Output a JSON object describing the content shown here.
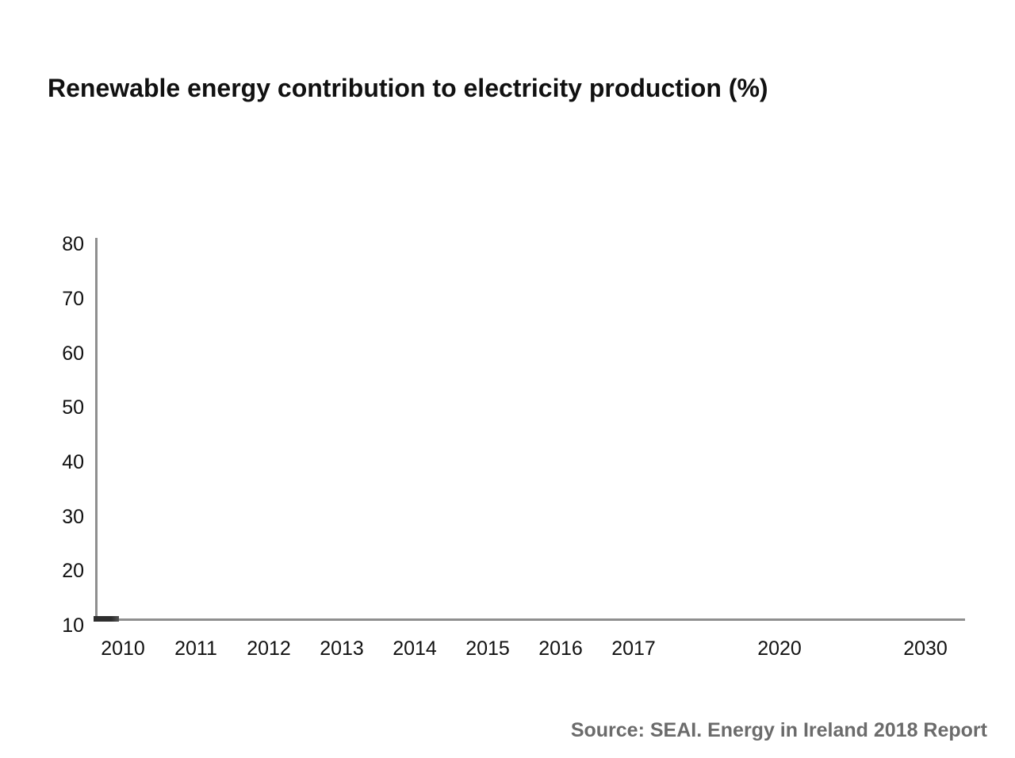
{
  "page": {
    "background": "#ffffff"
  },
  "title": "Renewable energy contribution to electricity production (%)",
  "source": "Source: SEAI. Energy in Ireland 2018 Report",
  "colors": {
    "title_text": "#111111",
    "tick_label_text": "#111111",
    "axis_line": "#8f8f8f",
    "line_start_segment": "#2e2e2e",
    "source_text": "#6b6b6b"
  },
  "chart_data": {
    "type": "line",
    "title": "Renewable energy contribution to electricity production (%)",
    "xlabel": "",
    "ylabel": "",
    "categories": [
      "2010",
      "2011",
      "2012",
      "2013",
      "2014",
      "2015",
      "2016",
      "2017",
      "2020",
      "2030"
    ],
    "category_slots": [
      0,
      1,
      2,
      3,
      4,
      5,
      6,
      7,
      9,
      11
    ],
    "yticks": [
      10,
      20,
      30,
      40,
      50,
      60,
      70,
      80
    ],
    "ylim": [
      10,
      80
    ],
    "grid": false,
    "legend": "none",
    "series": [
      {
        "name": "renewable-share-line",
        "visible_points": [
          {
            "category": "2010",
            "value": 10.5
          }
        ],
        "render_state": "animation just started; only a short dark segment is drawn at the axis origin"
      }
    ],
    "source": "Source: SEAI. Energy in Ireland 2018 Report"
  }
}
